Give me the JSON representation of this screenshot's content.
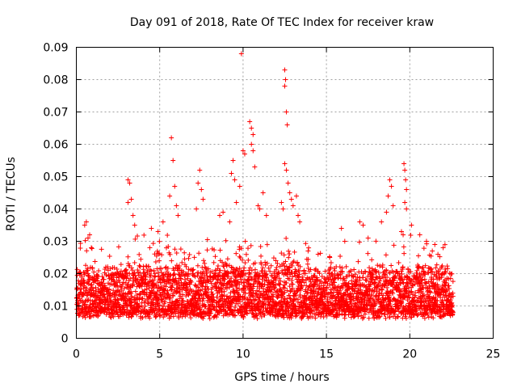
{
  "chart_data": {
    "type": "scatter",
    "title": "Day 091 of 2018, Rate Of TEC Index for receiver kraw",
    "xlabel": "GPS time / hours",
    "ylabel": "ROTI / TECUs",
    "xlim": [
      0,
      25
    ],
    "ylim": [
      0,
      0.09
    ],
    "x_ticks": [
      0,
      5,
      10,
      15,
      20,
      25
    ],
    "x_tick_labels": [
      "0",
      "5",
      "10",
      "15",
      "20",
      "25"
    ],
    "y_ticks": [
      0,
      0.01,
      0.02,
      0.03,
      0.04,
      0.05,
      0.06,
      0.07,
      0.08,
      0.09
    ],
    "y_tick_labels": [
      "0",
      "0.01",
      "0.02",
      "0.03",
      "0.04",
      "0.05",
      "0.06",
      "0.07",
      "0.08",
      "0.09"
    ],
    "grid": true,
    "marker": "+",
    "series_color": "#ff0000",
    "data_range_hours": [
      0,
      22.6
    ],
    "points": [
      [
        0.5,
        0.035
      ],
      [
        0.6,
        0.036
      ],
      [
        0.7,
        0.031
      ],
      [
        0.8,
        0.032
      ],
      [
        0.9,
        0.028
      ],
      [
        3.1,
        0.049
      ],
      [
        3.2,
        0.048
      ],
      [
        3.3,
        0.043
      ],
      [
        3.1,
        0.042
      ],
      [
        3.4,
        0.038
      ],
      [
        3.5,
        0.035
      ],
      [
        4.5,
        0.034
      ],
      [
        4.9,
        0.033
      ],
      [
        5.2,
        0.036
      ],
      [
        5.6,
        0.044
      ],
      [
        5.7,
        0.062
      ],
      [
        5.8,
        0.055
      ],
      [
        5.9,
        0.047
      ],
      [
        6.0,
        0.041
      ],
      [
        6.1,
        0.038
      ],
      [
        7.3,
        0.048
      ],
      [
        7.4,
        0.052
      ],
      [
        7.5,
        0.046
      ],
      [
        7.6,
        0.043
      ],
      [
        7.2,
        0.04
      ],
      [
        8.6,
        0.038
      ],
      [
        8.8,
        0.039
      ],
      [
        9.3,
        0.051
      ],
      [
        9.4,
        0.055
      ],
      [
        9.5,
        0.049
      ],
      [
        9.6,
        0.042
      ],
      [
        9.2,
        0.036
      ],
      [
        9.9,
        0.088
      ],
      [
        10.0,
        0.058
      ],
      [
        10.1,
        0.057
      ],
      [
        9.8,
        0.047
      ],
      [
        10.4,
        0.067
      ],
      [
        10.5,
        0.065
      ],
      [
        10.6,
        0.063
      ],
      [
        10.5,
        0.06
      ],
      [
        10.6,
        0.058
      ],
      [
        10.7,
        0.053
      ],
      [
        11.2,
        0.045
      ],
      [
        11.0,
        0.04
      ],
      [
        10.9,
        0.041
      ],
      [
        11.4,
        0.038
      ],
      [
        12.3,
        0.042
      ],
      [
        12.4,
        0.04
      ],
      [
        12.5,
        0.083
      ],
      [
        12.55,
        0.08
      ],
      [
        12.5,
        0.078
      ],
      [
        12.6,
        0.07
      ],
      [
        12.65,
        0.066
      ],
      [
        12.5,
        0.054
      ],
      [
        12.6,
        0.052
      ],
      [
        12.7,
        0.048
      ],
      [
        12.8,
        0.045
      ],
      [
        12.9,
        0.043
      ],
      [
        13.0,
        0.041
      ],
      [
        13.2,
        0.044
      ],
      [
        13.3,
        0.038
      ],
      [
        13.4,
        0.036
      ],
      [
        13.9,
        0.027
      ],
      [
        14.5,
        0.026
      ],
      [
        15.2,
        0.025
      ],
      [
        15.9,
        0.034
      ],
      [
        16.1,
        0.03
      ],
      [
        17.0,
        0.036
      ],
      [
        17.2,
        0.035
      ],
      [
        17.5,
        0.031
      ],
      [
        18.3,
        0.036
      ],
      [
        18.6,
        0.039
      ],
      [
        18.7,
        0.044
      ],
      [
        18.8,
        0.049
      ],
      [
        18.9,
        0.047
      ],
      [
        19.0,
        0.041
      ],
      [
        19.5,
        0.033
      ],
      [
        19.6,
        0.032
      ],
      [
        19.65,
        0.054
      ],
      [
        19.7,
        0.052
      ],
      [
        19.75,
        0.049
      ],
      [
        19.8,
        0.046
      ],
      [
        19.7,
        0.042
      ],
      [
        19.8,
        0.04
      ],
      [
        20.1,
        0.035
      ],
      [
        20.6,
        0.032
      ],
      [
        21.0,
        0.03
      ],
      [
        21.5,
        0.029
      ],
      [
        22.0,
        0.028
      ]
    ]
  }
}
